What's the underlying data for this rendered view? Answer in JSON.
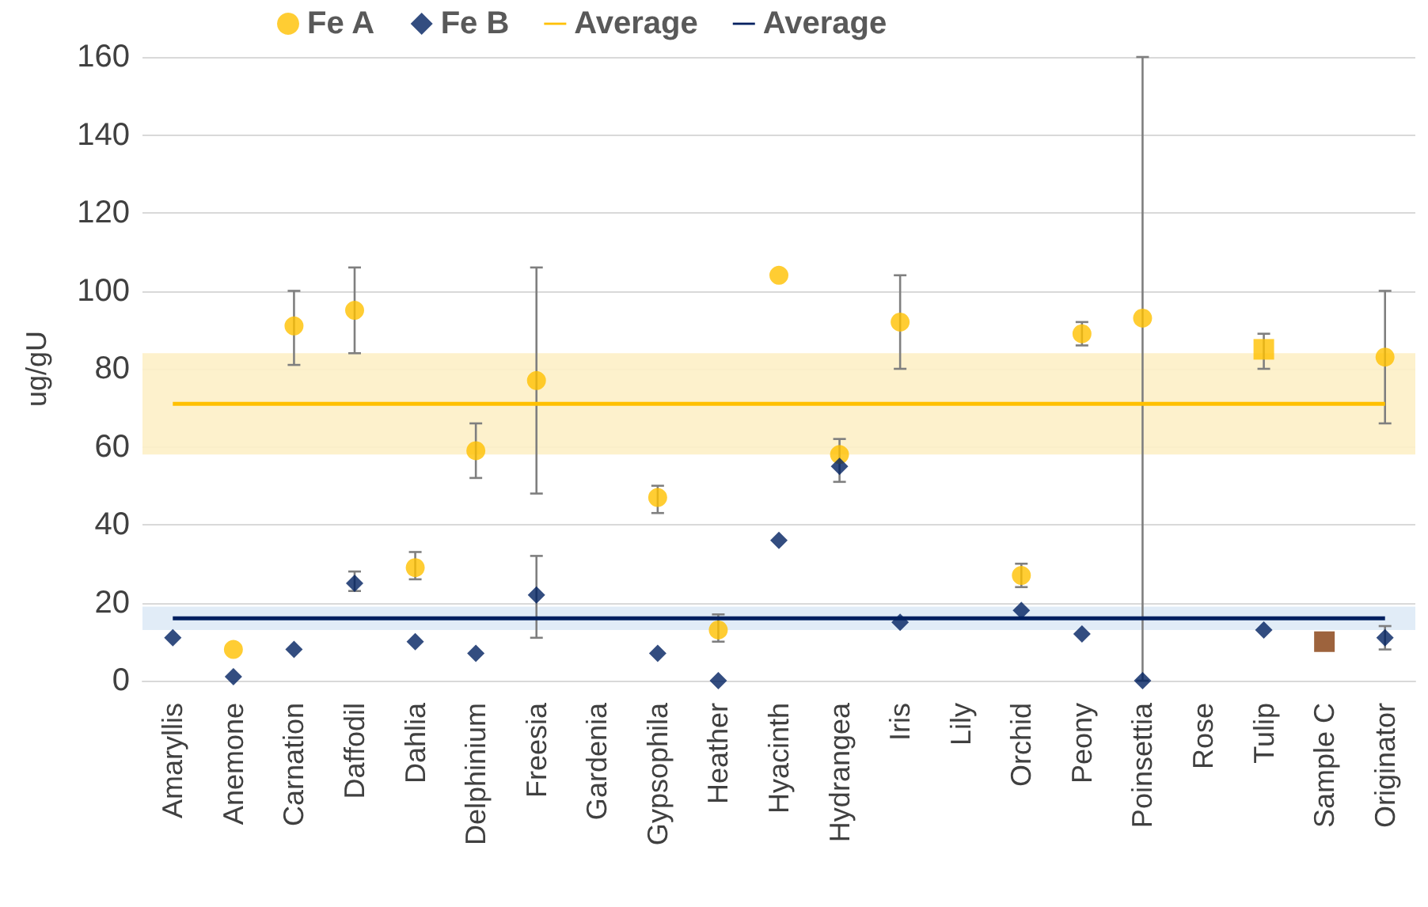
{
  "chart_data": {
    "type": "scatter",
    "ylabel": "ug/gU",
    "categories": [
      "Amaryllis",
      "Anemone",
      "Carnation",
      "Daffodil",
      "Dahlia",
      "Delphinium",
      "Freesia",
      "Gardenia",
      "Gypsophila",
      "Heather",
      "Hyacinth",
      "Hydrangea",
      "Iris",
      "Lily",
      "Orchid",
      "Peony",
      "Poinsettia",
      "Rose",
      "Tulip",
      "Sample C",
      "Originator"
    ],
    "series": [
      {
        "name": "Fe A",
        "color": "#ffc000",
        "marker": "circle",
        "values": [
          null,
          8,
          91,
          95,
          29,
          59,
          77,
          null,
          47,
          13,
          104,
          58,
          92,
          null,
          27,
          89,
          93,
          null,
          null,
          null,
          83
        ],
        "errors": [
          null,
          null,
          [
            81,
            100
          ],
          [
            84,
            106
          ],
          [
            26,
            33
          ],
          [
            52,
            66
          ],
          [
            48,
            106
          ],
          null,
          [
            43,
            50
          ],
          [
            10,
            17
          ],
          null,
          [
            51,
            62
          ],
          [
            80,
            104
          ],
          null,
          [
            24,
            30
          ],
          [
            86,
            92
          ],
          [
            0,
            160
          ],
          null,
          null,
          null,
          [
            66,
            100
          ]
        ]
      },
      {
        "name": "Fe B",
        "color": "#002060",
        "marker": "diamond",
        "values": [
          11,
          1,
          8,
          25,
          10,
          7,
          22,
          null,
          7,
          0,
          36,
          55,
          15,
          null,
          18,
          12,
          0,
          null,
          13,
          null,
          11
        ],
        "errors": [
          null,
          null,
          null,
          [
            23,
            28
          ],
          null,
          null,
          [
            11,
            32
          ],
          null,
          null,
          null,
          null,
          null,
          null,
          null,
          null,
          null,
          null,
          null,
          null,
          null,
          [
            8,
            14
          ]
        ]
      },
      {
        "color": "#ffc000",
        "marker": "square",
        "values": [
          null,
          null,
          null,
          null,
          null,
          null,
          null,
          null,
          null,
          null,
          null,
          null,
          null,
          null,
          null,
          null,
          null,
          null,
          85,
          null,
          null
        ],
        "errors": [
          null,
          null,
          null,
          null,
          null,
          null,
          null,
          null,
          null,
          null,
          null,
          null,
          null,
          null,
          null,
          null,
          null,
          null,
          [
            80,
            89
          ],
          null,
          null
        ]
      },
      {
        "color": "#843c0c",
        "marker": "square",
        "values": [
          null,
          null,
          null,
          null,
          null,
          null,
          null,
          null,
          null,
          null,
          null,
          null,
          null,
          null,
          null,
          null,
          null,
          null,
          null,
          10,
          null
        ]
      },
      {
        "name": "Average",
        "type": "line",
        "color": "#ffc000",
        "marker": "none",
        "values": [
          71,
          71,
          71,
          71,
          71,
          71,
          71,
          71,
          71,
          71,
          71,
          71,
          71,
          71,
          71,
          71,
          71,
          71,
          71,
          71,
          71
        ]
      },
      {
        "name": "Average",
        "type": "line",
        "color": "#002060",
        "marker": "none",
        "values": [
          16,
          16,
          16,
          16,
          16,
          16,
          16,
          16,
          16,
          16,
          16,
          16,
          16,
          16,
          16,
          16,
          16,
          16,
          16,
          16,
          16
        ]
      }
    ],
    "bands": [
      {
        "axis": "y",
        "from": 58,
        "to": 84,
        "color": "#fdefc7"
      },
      {
        "axis": "y",
        "from": 13,
        "to": 19,
        "color": "#deeaf6"
      }
    ],
    "ylim": [
      0,
      160
    ],
    "yticks": [
      0,
      20,
      40,
      60,
      80,
      100,
      120,
      140,
      160
    ],
    "grid": "y",
    "legend": "top"
  }
}
